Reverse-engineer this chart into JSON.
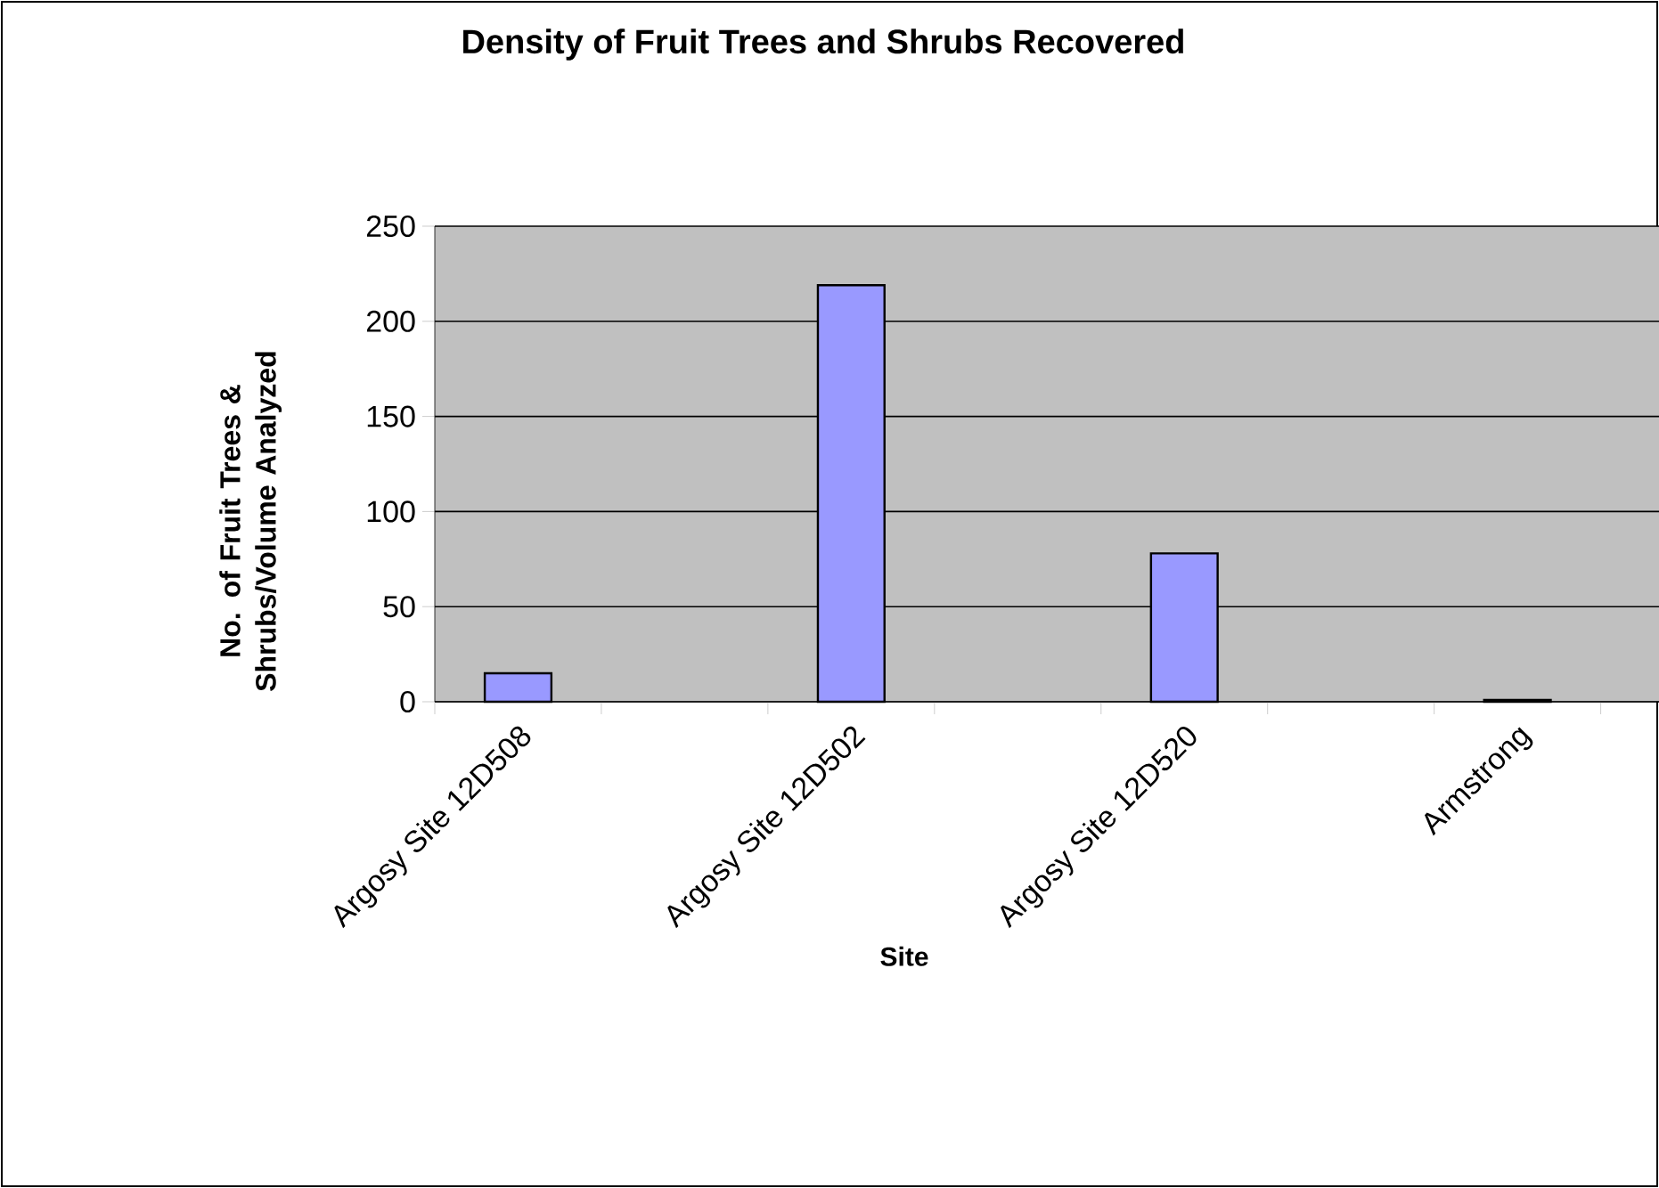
{
  "chart_data": {
    "type": "bar",
    "title": "Density of Fruit Trees and Shrubs Recovered",
    "xlabel": "Site",
    "ylabel": "No. of Fruit Trees & Shrubs/Volume Analyzed",
    "categories": [
      "Argosy Site 12D508",
      null,
      "Argosy Site 12D502",
      null,
      "Argosy Site 12D520",
      null,
      "Armstrong"
    ],
    "values": [
      15,
      null,
      219,
      null,
      78,
      null,
      1
    ],
    "color": "#9999ff",
    "ylim": [
      0,
      250
    ],
    "yticks": [
      0,
      50,
      100,
      150,
      200,
      250
    ],
    "grid": "y"
  }
}
